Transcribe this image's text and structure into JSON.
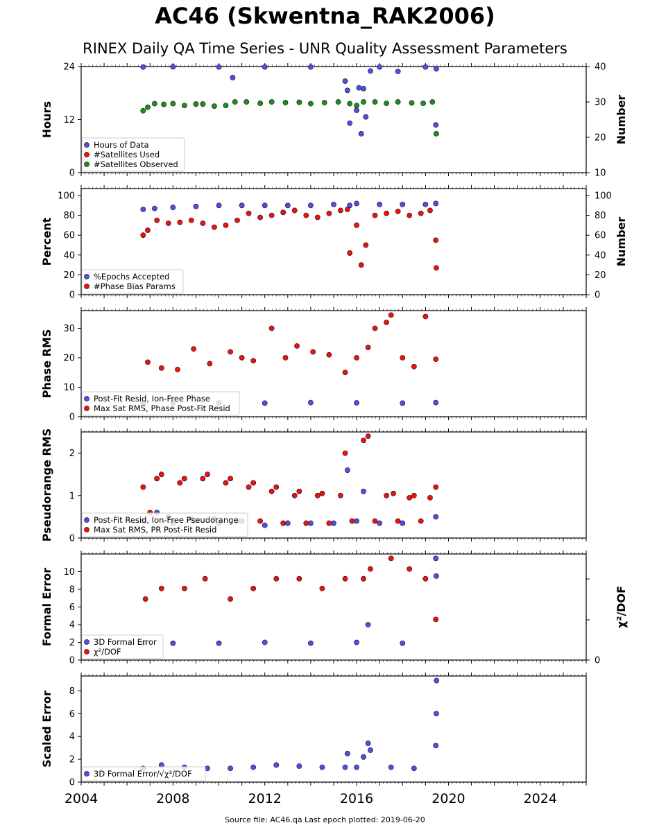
{
  "title": "AC46 (Skwentna_RAK2006)",
  "subtitle": "RINEX Daily QA Time Series - UNR Quality Assessment Parameters",
  "footer": "Source file: AC46.qa Last epoch plotted: 2019-06-20",
  "colors": {
    "blue": "#4f4fe8",
    "red": "#ee1111",
    "green": "#1a8f1a",
    "edge": "#111111"
  },
  "chart_data": [
    {
      "type": "scatter",
      "xlim": [
        2004,
        2026
      ],
      "x_ticks": [
        "2004",
        "2008",
        "2012",
        "2016",
        "2020",
        "2024"
      ],
      "ylabel": "Hours",
      "ylim": [
        0,
        24
      ],
      "yticks": [
        "0",
        "12",
        "24"
      ],
      "y2label": "Number",
      "y2lim": [
        10,
        40
      ],
      "y2ticks": [
        "10",
        "20",
        "30",
        "40"
      ],
      "legend_position": "bottom-left",
      "series": [
        {
          "name": "Hours of Data",
          "color": "blue",
          "axis": "left",
          "x": [
            2006.7,
            2008.0,
            2010.0,
            2010.6,
            2012.0,
            2014.0,
            2015.5,
            2015.6,
            2015.7,
            2016.0,
            2016.1,
            2016.2,
            2016.3,
            2016.4,
            2016.6,
            2017.0,
            2017.8,
            2019.0,
            2019.45,
            2019.47
          ],
          "y": [
            23.9,
            23.95,
            23.9,
            21.5,
            23.9,
            23.9,
            20.7,
            18.6,
            11.2,
            14.1,
            19.2,
            8.8,
            19.0,
            12.6,
            23.0,
            23.9,
            22.9,
            23.9,
            10.8,
            23.5
          ]
        },
        {
          "name": "#Satellites Used",
          "color": "red",
          "axis": "right",
          "x": [],
          "y": []
        },
        {
          "name": "#Satellites Observed",
          "color": "green",
          "axis": "right",
          "x": [
            2006.7,
            2006.9,
            2007.2,
            2007.6,
            2008.0,
            2008.5,
            2009.0,
            2009.3,
            2009.8,
            2010.3,
            2010.7,
            2011.2,
            2011.8,
            2012.3,
            2012.9,
            2013.5,
            2014.0,
            2014.6,
            2015.2,
            2015.7,
            2016.0,
            2016.3,
            2016.8,
            2017.3,
            2017.8,
            2018.4,
            2018.9,
            2019.3,
            2019.47
          ],
          "y": [
            27.5,
            28.5,
            29.5,
            29.3,
            29.5,
            29.0,
            29.4,
            29.4,
            28.8,
            29.0,
            30.0,
            30.0,
            29.6,
            30.0,
            29.8,
            29.9,
            29.5,
            29.8,
            30.0,
            29.5,
            29.0,
            30.0,
            30.0,
            29.6,
            30.0,
            29.7,
            29.6,
            30.0,
            21.0
          ]
        }
      ]
    },
    {
      "type": "scatter",
      "xlim": [
        2004,
        2026
      ],
      "ylabel": "Percent",
      "ylim": [
        0,
        107
      ],
      "yticks": [
        "0",
        "20",
        "40",
        "60",
        "80",
        "100"
      ],
      "y2label": "Number",
      "y2ticks": [
        "0",
        "20",
        "40",
        "60",
        "80",
        "100"
      ],
      "legend_position": "bottom-left",
      "series": [
        {
          "name": "%Epochs Accepted",
          "color": "blue",
          "axis": "left",
          "x": [
            2006.7,
            2007.2,
            2008.0,
            2009.0,
            2010.0,
            2011.0,
            2012.0,
            2013.0,
            2014.0,
            2015.0,
            2015.7,
            2016.0,
            2017.0,
            2018.0,
            2019.0,
            2019.45
          ],
          "y": [
            86,
            87,
            88,
            89,
            90,
            90,
            90,
            90,
            90,
            91,
            90,
            92,
            91,
            91,
            91,
            92
          ]
        },
        {
          "name": "#Phase Bias Params",
          "color": "red",
          "axis": "right",
          "x": [
            2006.7,
            2006.9,
            2007.3,
            2007.8,
            2008.3,
            2008.8,
            2009.3,
            2009.8,
            2010.3,
            2010.8,
            2011.3,
            2011.8,
            2012.3,
            2012.8,
            2013.3,
            2013.8,
            2014.3,
            2014.8,
            2015.3,
            2015.6,
            2015.7,
            2016.0,
            2016.2,
            2016.4,
            2016.8,
            2017.3,
            2017.8,
            2018.3,
            2018.8,
            2019.2,
            2019.45,
            2019.47
          ],
          "y": [
            60,
            65,
            75,
            72,
            73,
            75,
            72,
            68,
            70,
            75,
            82,
            78,
            80,
            83,
            85,
            80,
            78,
            82,
            85,
            86,
            42,
            70,
            30,
            50,
            80,
            82,
            84,
            80,
            82,
            85,
            55,
            27
          ]
        }
      ]
    },
    {
      "type": "scatter",
      "xlim": [
        2004,
        2026
      ],
      "ylabel": "Phase RMS",
      "ylim": [
        0,
        36
      ],
      "yticks": [
        "0",
        "10",
        "20",
        "30"
      ],
      "legend_position": "bottom-left",
      "series": [
        {
          "name": "Post-Fit Resid, Ion-Free Phase",
          "color": "blue",
          "x": [
            2006.7,
            2008.0,
            2010.0,
            2012.0,
            2014.0,
            2016.0,
            2018.0,
            2019.45
          ],
          "y": [
            4.5,
            4.6,
            4.7,
            4.6,
            4.8,
            4.7,
            4.6,
            4.8
          ]
        },
        {
          "name": "Max Sat RMS, Phase Post-Fit Resid",
          "color": "red",
          "x": [
            2006.9,
            2007.5,
            2008.2,
            2008.9,
            2009.6,
            2010.5,
            2011.0,
            2011.5,
            2012.3,
            2012.9,
            2013.4,
            2014.1,
            2014.8,
            2015.5,
            2016.0,
            2016.5,
            2016.8,
            2017.3,
            2017.5,
            2018.0,
            2018.5,
            2019.0,
            2019.45
          ],
          "y": [
            18.5,
            16.5,
            16.0,
            23.0,
            18.0,
            22.0,
            20.0,
            19.0,
            30.0,
            20.0,
            24.0,
            22.0,
            21.0,
            15.0,
            20.0,
            23.5,
            30.0,
            32.0,
            34.5,
            20.0,
            17.0,
            34.0,
            19.5
          ]
        }
      ]
    },
    {
      "type": "scatter",
      "xlim": [
        2004,
        2026
      ],
      "ylabel": "Pseudorange RMS",
      "ylim": [
        0,
        2.5
      ],
      "yticks": [
        "0",
        "1",
        "2"
      ],
      "legend_position": "bottom-left",
      "series": [
        {
          "name": "Post-Fit Resid, Ion-Free Pseudorange",
          "color": "blue",
          "x": [
            2006.7,
            2007.3,
            2008.0,
            2009.0,
            2010.0,
            2011.0,
            2012.0,
            2013.0,
            2014.0,
            2015.0,
            2015.6,
            2016.0,
            2016.3,
            2017.0,
            2018.0,
            2019.45
          ],
          "y": [
            0.4,
            0.6,
            0.35,
            0.4,
            0.35,
            0.4,
            0.3,
            0.35,
            0.35,
            0.35,
            1.6,
            0.4,
            1.1,
            0.35,
            0.35,
            0.5
          ]
        },
        {
          "name": "Max Sat RMS, PR Post-Fit Resid",
          "color": "red",
          "x": [
            2006.7,
            2007.0,
            2007.3,
            2007.5,
            2007.8,
            2008.3,
            2008.5,
            2008.8,
            2009.3,
            2009.5,
            2009.8,
            2010.3,
            2010.5,
            2010.8,
            2011.3,
            2011.5,
            2011.8,
            2012.3,
            2012.5,
            2012.8,
            2013.3,
            2013.5,
            2013.8,
            2014.3,
            2014.5,
            2014.8,
            2015.3,
            2015.5,
            2015.8,
            2016.3,
            2016.5,
            2016.8,
            2017.3,
            2017.6,
            2017.8,
            2018.3,
            2018.5,
            2018.8,
            2019.2,
            2019.45
          ],
          "y": [
            1.2,
            0.6,
            1.4,
            1.5,
            0.5,
            1.3,
            1.4,
            0.45,
            1.4,
            1.5,
            0.45,
            1.3,
            1.4,
            0.4,
            1.2,
            1.3,
            0.4,
            1.1,
            1.2,
            0.35,
            1.0,
            1.1,
            0.35,
            1.0,
            1.05,
            0.35,
            1.0,
            2.0,
            0.4,
            2.3,
            2.4,
            0.4,
            1.0,
            1.05,
            0.4,
            0.95,
            1.0,
            0.4,
            0.95,
            1.2
          ]
        }
      ]
    },
    {
      "type": "scatter",
      "xlim": [
        2004,
        2026
      ],
      "ylabel": "Formal Error",
      "ylim": [
        0,
        12
      ],
      "yticks": [
        "0",
        "2",
        "4",
        "6",
        "8",
        "10"
      ],
      "y2label": "χ²/DOF",
      "y2ticks": [
        "0"
      ],
      "legend_position": "bottom-left",
      "series": [
        {
          "name": "3D Formal Error",
          "color": "blue",
          "x": [
            2006.7,
            2008.0,
            2010.0,
            2012.0,
            2014.0,
            2016.0,
            2016.5,
            2018.0,
            2019.45,
            2019.47
          ],
          "y": [
            1.9,
            1.9,
            1.9,
            2.0,
            1.9,
            2.0,
            4.0,
            1.9,
            11.5,
            9.5
          ]
        },
        {
          "name": "χ²/DOF",
          "color": "red",
          "x": [
            2006.8,
            2007.5,
            2008.5,
            2009.4,
            2010.5,
            2011.5,
            2012.5,
            2013.5,
            2014.5,
            2015.5,
            2016.3,
            2016.6,
            2017.5,
            2018.3,
            2019.0,
            2019.45
          ],
          "y": [
            6.9,
            8.1,
            8.1,
            9.2,
            6.9,
            8.1,
            9.2,
            9.2,
            8.1,
            9.2,
            9.2,
            10.3,
            11.5,
            10.3,
            9.2,
            4.6
          ]
        }
      ]
    },
    {
      "type": "scatter",
      "xlim": [
        2004,
        2026
      ],
      "ylabel": "Scaled Error",
      "ylim": [
        0,
        9.3
      ],
      "yticks": [
        "0",
        "2",
        "4",
        "6",
        "8"
      ],
      "legend_position": "bottom-left",
      "series": [
        {
          "name": "3D Formal Error/√χ²/DOF",
          "color": "blue",
          "x": [
            2006.7,
            2007.5,
            2008.5,
            2009.5,
            2010.5,
            2011.5,
            2012.5,
            2013.5,
            2014.5,
            2015.5,
            2015.6,
            2016.0,
            2016.3,
            2016.5,
            2016.6,
            2017.5,
            2018.5,
            2019.45,
            2019.47,
            2019.48
          ],
          "y": [
            1.2,
            1.5,
            1.3,
            1.2,
            1.2,
            1.3,
            1.5,
            1.4,
            1.3,
            1.3,
            2.5,
            1.3,
            2.2,
            3.4,
            2.8,
            1.3,
            1.2,
            3.2,
            6.0,
            8.9
          ]
        }
      ]
    }
  ]
}
